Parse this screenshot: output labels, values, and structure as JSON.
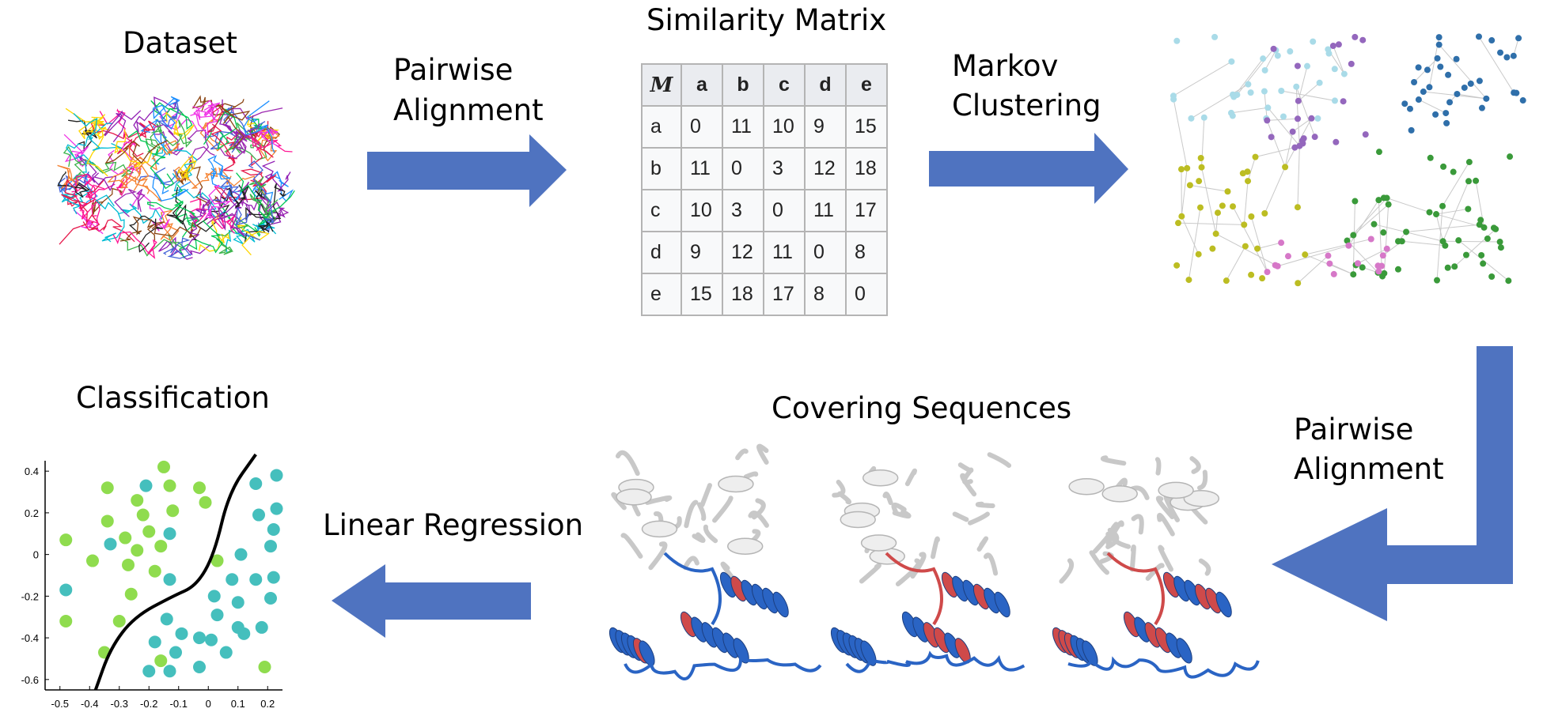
{
  "labels": {
    "dataset": "Dataset",
    "pairwise_top": [
      "Pairwise",
      "Alignment"
    ],
    "similarity_matrix": "Similarity Matrix",
    "markov": [
      "Markov",
      "Clustering"
    ],
    "classification": "Classification",
    "linear_regression": "Linear Regression",
    "covering_sequences": "Covering Sequences",
    "pairwise_right": [
      "Pairwise",
      "Alignment"
    ]
  },
  "matrix": {
    "corner": "M",
    "columns": [
      "a",
      "b",
      "c",
      "d",
      "e"
    ],
    "rows": [
      {
        "label": "a",
        "values": [
          "0",
          "11",
          "10",
          "9",
          "15"
        ]
      },
      {
        "label": "b",
        "values": [
          "11",
          "0",
          "3",
          "12",
          "18"
        ]
      },
      {
        "label": "c",
        "values": [
          "10",
          "3",
          "0",
          "11",
          "17"
        ]
      },
      {
        "label": "d",
        "values": [
          "9",
          "12",
          "11",
          "0",
          "8"
        ]
      },
      {
        "label": "e",
        "values": [
          "15",
          "18",
          "17",
          "8",
          "0"
        ]
      }
    ]
  },
  "colors": {
    "arrow": "#4f73c0",
    "cluster_cyan": "#a9dbe8",
    "cluster_purple": "#9467bd",
    "cluster_blue": "#2f6faa",
    "cluster_olive": "#bcbd22",
    "cluster_green": "#3a9a3a",
    "cluster_pink": "#d678c8",
    "class_green": "#8fdc4e",
    "class_teal": "#45bfbd",
    "protein_blue": "#2a64c4",
    "protein_red": "#cf4a4a"
  },
  "chart_data": {
    "type": "scatter",
    "x_ticks": [
      "-0.5",
      "-0.4",
      "-0.3",
      "-0.2",
      "-0.1",
      "0",
      "0.1",
      "0.2"
    ],
    "y_ticks": [
      "0.4",
      "0.2",
      "0",
      "-0.2",
      "-0.4",
      "-0.6"
    ],
    "xlim": [
      -0.55,
      0.25
    ],
    "ylim": [
      -0.65,
      0.45
    ],
    "series": [
      {
        "color": "#8fdc4e",
        "points": [
          [
            -0.34,
            0.32
          ],
          [
            -0.24,
            0.26
          ],
          [
            -0.15,
            0.42
          ],
          [
            -0.13,
            0.33
          ],
          [
            -0.03,
            0.32
          ],
          [
            -0.01,
            0.25
          ],
          [
            -0.34,
            0.16
          ],
          [
            -0.22,
            0.19
          ],
          [
            -0.12,
            0.21
          ],
          [
            -0.48,
            0.07
          ],
          [
            -0.28,
            0.08
          ],
          [
            -0.2,
            0.11
          ],
          [
            -0.16,
            0.04
          ],
          [
            -0.24,
            0.02
          ],
          [
            -0.39,
            -0.03
          ],
          [
            -0.27,
            -0.05
          ],
          [
            -0.18,
            -0.08
          ],
          [
            -0.26,
            -0.19
          ],
          [
            -0.48,
            -0.32
          ],
          [
            -0.3,
            -0.32
          ],
          [
            -0.35,
            -0.47
          ],
          [
            -0.16,
            -0.51
          ],
          [
            0.03,
            -0.03
          ],
          [
            0.19,
            -0.54
          ]
        ]
      },
      {
        "color": "#45bfbd",
        "points": [
          [
            -0.21,
            0.33
          ],
          [
            0.16,
            0.34
          ],
          [
            0.23,
            0.38
          ],
          [
            0.23,
            0.22
          ],
          [
            0.17,
            0.19
          ],
          [
            0.22,
            0.12
          ],
          [
            -0.13,
            0.1
          ],
          [
            -0.33,
            0.05
          ],
          [
            0.21,
            0.04
          ],
          [
            0.11,
            0.0
          ],
          [
            -0.13,
            -0.12
          ],
          [
            0.08,
            -0.12
          ],
          [
            0.16,
            -0.12
          ],
          [
            0.22,
            -0.11
          ],
          [
            -0.48,
            -0.17
          ],
          [
            0.02,
            -0.2
          ],
          [
            0.1,
            -0.23
          ],
          [
            0.21,
            -0.21
          ],
          [
            -0.14,
            -0.31
          ],
          [
            0.03,
            -0.29
          ],
          [
            0.1,
            -0.35
          ],
          [
            -0.09,
            -0.38
          ],
          [
            0.01,
            -0.41
          ],
          [
            0.12,
            -0.38
          ],
          [
            -0.18,
            -0.42
          ],
          [
            -0.03,
            -0.4
          ],
          [
            0.18,
            -0.35
          ],
          [
            -0.11,
            -0.47
          ],
          [
            0.06,
            -0.47
          ],
          [
            -0.03,
            -0.54
          ],
          [
            -0.13,
            -0.56
          ],
          [
            -0.2,
            -0.56
          ]
        ]
      }
    ],
    "boundary": [
      [
        -0.38,
        -0.65
      ],
      [
        -0.33,
        -0.45
      ],
      [
        -0.25,
        -0.3
      ],
      [
        -0.12,
        -0.2
      ],
      [
        -0.04,
        -0.15
      ],
      [
        0.02,
        0.0
      ],
      [
        0.07,
        0.3
      ],
      [
        0.16,
        0.48
      ]
    ]
  }
}
